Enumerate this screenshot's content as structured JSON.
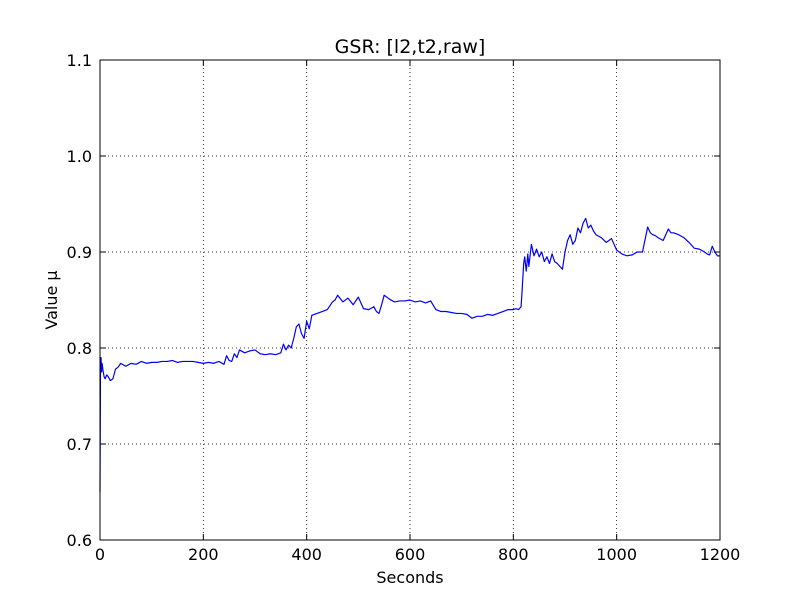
{
  "chart_data": {
    "type": "line",
    "title": "GSR: [l2,t2,raw]",
    "xlabel": "Seconds",
    "ylabel": "Value µ",
    "xlim": [
      0,
      1200
    ],
    "ylim": [
      0.6,
      1.1
    ],
    "xticks": [
      0,
      200,
      400,
      600,
      800,
      1000,
      1200
    ],
    "yticks": [
      0.6,
      0.7,
      0.8,
      0.9,
      1.0,
      1.1
    ],
    "xtick_labels": [
      "0",
      "200",
      "400",
      "600",
      "800",
      "1000",
      "1200"
    ],
    "ytick_labels": [
      "0.6",
      "0.7",
      "0.8",
      "0.9",
      "1.0",
      "1.1"
    ],
    "grid": true,
    "legend": "none",
    "series": [
      {
        "color": "#0000ff",
        "x": [
          0,
          1,
          2,
          3,
          4,
          6,
          8,
          10,
          13,
          16,
          20,
          25,
          30,
          35,
          40,
          50,
          60,
          70,
          80,
          90,
          100,
          110,
          120,
          130,
          140,
          150,
          160,
          170,
          180,
          190,
          200,
          210,
          220,
          230,
          240,
          245,
          250,
          255,
          260,
          265,
          270,
          280,
          290,
          300,
          310,
          320,
          330,
          340,
          350,
          355,
          360,
          365,
          370,
          375,
          380,
          385,
          390,
          395,
          400,
          405,
          410,
          420,
          430,
          440,
          450,
          455,
          460,
          470,
          480,
          490,
          500,
          510,
          520,
          530,
          535,
          540,
          545,
          550,
          560,
          570,
          580,
          590,
          600,
          610,
          620,
          630,
          640,
          650,
          660,
          670,
          680,
          690,
          700,
          710,
          720,
          730,
          740,
          750,
          760,
          770,
          780,
          790,
          800,
          805,
          810,
          815,
          817,
          820,
          822,
          825,
          828,
          830,
          835,
          840,
          845,
          850,
          855,
          860,
          865,
          870,
          875,
          880,
          885,
          890,
          895,
          900,
          905,
          910,
          915,
          920,
          925,
          930,
          935,
          940,
          945,
          950,
          955,
          960,
          970,
          980,
          990,
          1000,
          1010,
          1020,
          1030,
          1040,
          1050,
          1060,
          1065,
          1070,
          1075,
          1080,
          1090,
          1100,
          1105,
          1110,
          1120,
          1130,
          1140,
          1150,
          1160,
          1170,
          1175,
          1180,
          1185,
          1190,
          1195,
          1200
        ],
        "y": [
          0.65,
          0.787,
          0.79,
          0.775,
          0.784,
          0.776,
          0.77,
          0.768,
          0.772,
          0.77,
          0.766,
          0.768,
          0.778,
          0.78,
          0.784,
          0.781,
          0.784,
          0.783,
          0.786,
          0.784,
          0.785,
          0.785,
          0.786,
          0.786,
          0.787,
          0.785,
          0.786,
          0.786,
          0.786,
          0.785,
          0.784,
          0.785,
          0.784,
          0.786,
          0.783,
          0.792,
          0.787,
          0.786,
          0.794,
          0.79,
          0.798,
          0.795,
          0.797,
          0.798,
          0.794,
          0.793,
          0.794,
          0.793,
          0.795,
          0.804,
          0.798,
          0.803,
          0.8,
          0.81,
          0.822,
          0.825,
          0.815,
          0.81,
          0.828,
          0.82,
          0.834,
          0.836,
          0.838,
          0.84,
          0.848,
          0.85,
          0.855,
          0.848,
          0.852,
          0.845,
          0.853,
          0.841,
          0.84,
          0.843,
          0.838,
          0.836,
          0.845,
          0.855,
          0.851,
          0.848,
          0.849,
          0.849,
          0.85,
          0.848,
          0.849,
          0.847,
          0.849,
          0.84,
          0.838,
          0.838,
          0.837,
          0.836,
          0.836,
          0.835,
          0.831,
          0.833,
          0.833,
          0.835,
          0.834,
          0.836,
          0.838,
          0.84,
          0.84,
          0.841,
          0.84,
          0.843,
          0.86,
          0.888,
          0.895,
          0.88,
          0.898,
          0.885,
          0.908,
          0.896,
          0.903,
          0.895,
          0.9,
          0.89,
          0.895,
          0.888,
          0.898,
          0.89,
          0.888,
          0.885,
          0.882,
          0.9,
          0.912,
          0.918,
          0.908,
          0.912,
          0.925,
          0.92,
          0.93,
          0.935,
          0.925,
          0.928,
          0.922,
          0.918,
          0.915,
          0.91,
          0.914,
          0.902,
          0.898,
          0.896,
          0.897,
          0.9,
          0.9,
          0.926,
          0.92,
          0.918,
          0.917,
          0.915,
          0.912,
          0.924,
          0.92,
          0.92,
          0.918,
          0.915,
          0.91,
          0.904,
          0.903,
          0.9,
          0.898,
          0.897,
          0.906,
          0.9,
          0.896,
          0.896
        ]
      }
    ]
  }
}
